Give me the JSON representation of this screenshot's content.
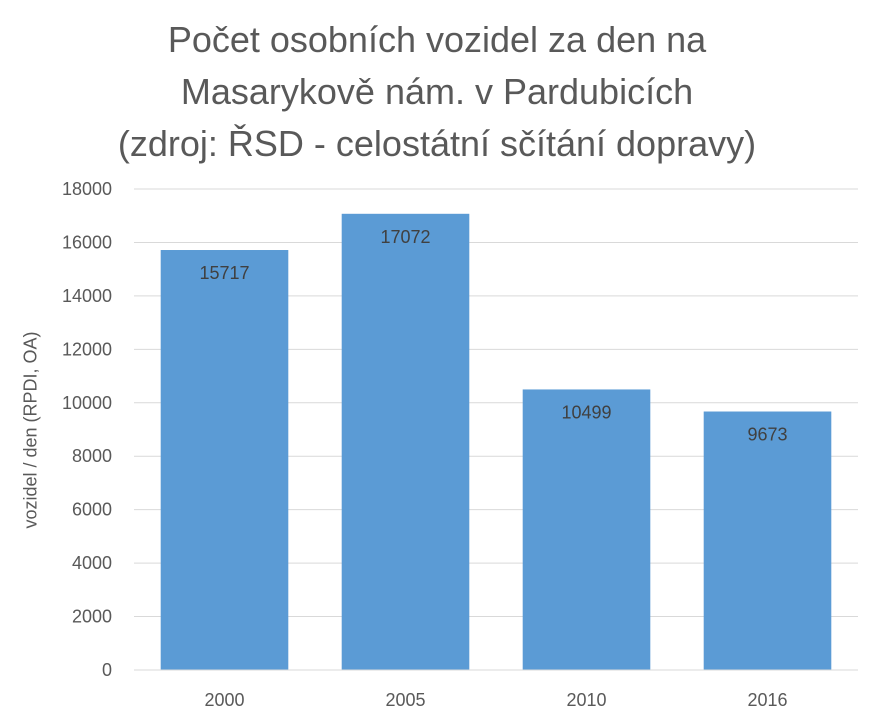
{
  "chart_data": {
    "type": "bar",
    "title_lines": [
      "Počet osobních vozidel za den na",
      "Masarykově nám. v Pardubicích",
      "(zdroj: ŘSD - celostátní sčítání dopravy)"
    ],
    "ylabel": "vozidel / den (RPDI, OA)",
    "xlabel": "",
    "categories": [
      "2000",
      "2005",
      "2010",
      "2016"
    ],
    "values": [
      15717,
      17072,
      10499,
      9673
    ],
    "data_labels": [
      "15717",
      "17072",
      "10499",
      "9673"
    ],
    "ylim": [
      0,
      18000
    ],
    "y_ticks": [
      0,
      2000,
      4000,
      6000,
      8000,
      10000,
      12000,
      14000,
      16000,
      18000
    ],
    "grid": true,
    "legend": "none",
    "bar_color": "#5B9BD5",
    "grid_color": "#D9D9D9",
    "text_color": "#595959"
  }
}
